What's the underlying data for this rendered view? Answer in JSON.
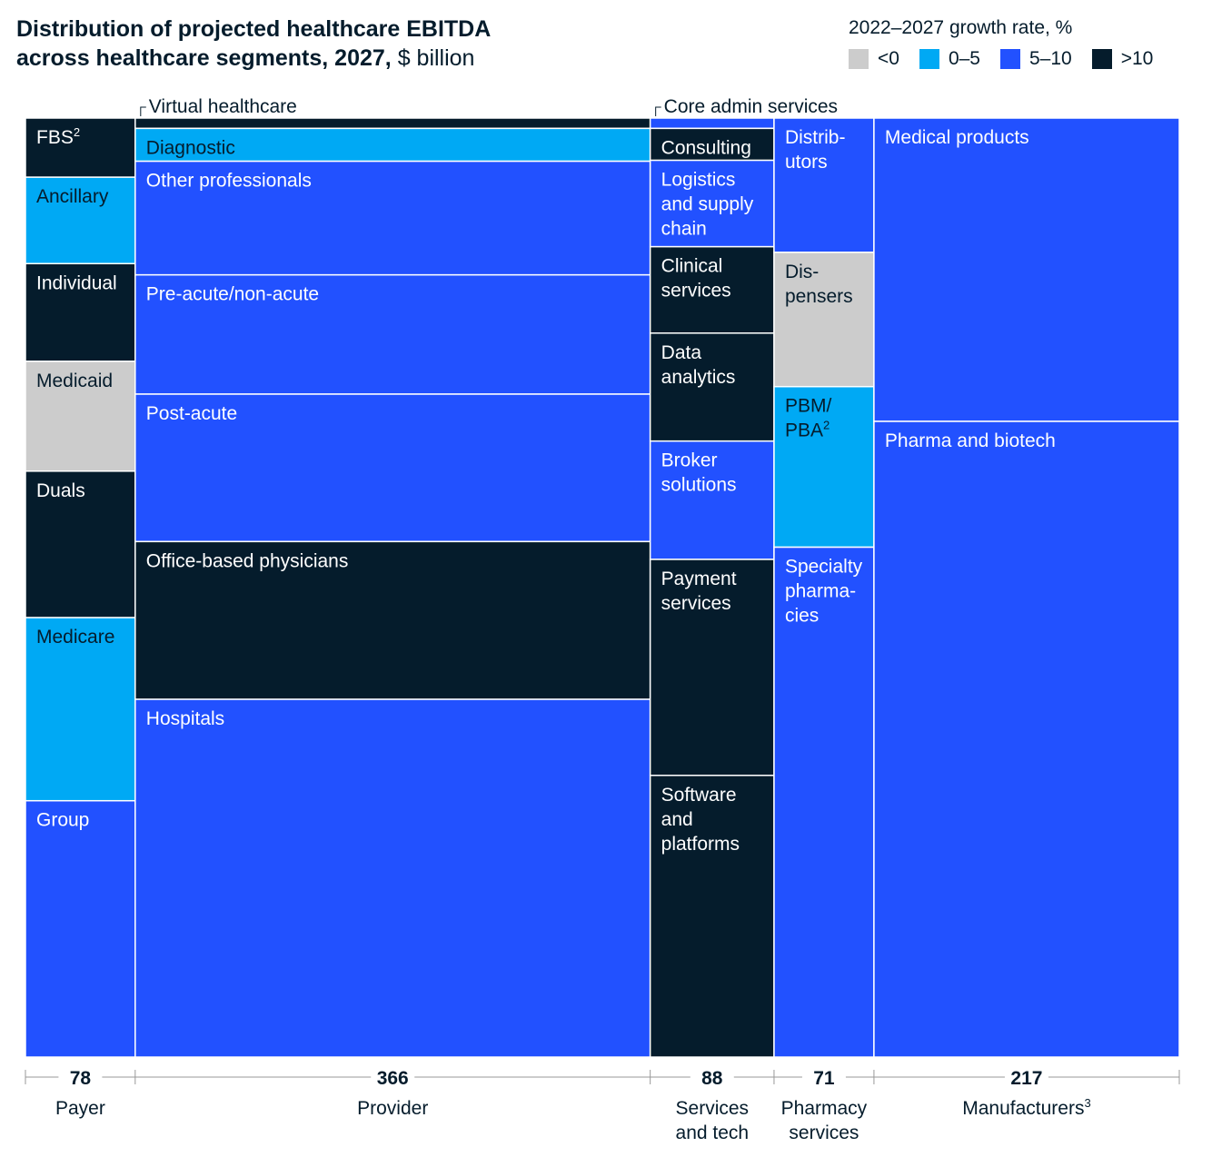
{
  "title": {
    "line1": "Distribution of projected healthcare EBITDA",
    "line2": "across healthcare segments, 2027,",
    "unit": "$ billion"
  },
  "legend": {
    "title": "2022–2027 growth rate, %",
    "items": [
      {
        "label": "<0",
        "color": "#cccccc"
      },
      {
        "label": "0–5",
        "color": "#00a9f4"
      },
      {
        "label": "5–10",
        "color": "#2251ff"
      },
      {
        "label": ">10",
        "color": "#051c2c"
      }
    ]
  },
  "chart_data": {
    "type": "marimekko",
    "value_unit": "$ billion",
    "color_key": {
      "<0": "#cccccc",
      "0–5": "#00a9f4",
      "5–10": "#2251ff",
      ">10": "#051c2c"
    },
    "columns": [
      {
        "name": "Payer",
        "value": 78,
        "total_label": "78",
        "label_lines": [
          "Payer"
        ],
        "segments": [
          {
            "name": "FBS",
            "label_lines": [
              "FBS"
            ],
            "superscript": "2",
            "share": 0.063,
            "growth": ">10"
          },
          {
            "name": "Ancillary",
            "label_lines": [
              "Ancillary"
            ],
            "share": 0.092,
            "growth": "0–5"
          },
          {
            "name": "Individual",
            "label_lines": [
              "Individual"
            ],
            "share": 0.104,
            "growth": ">10"
          },
          {
            "name": "Medicaid",
            "label_lines": [
              "Medicaid"
            ],
            "share": 0.117,
            "growth": "<0"
          },
          {
            "name": "Duals",
            "label_lines": [
              "Duals"
            ],
            "share": 0.156,
            "growth": ">10"
          },
          {
            "name": "Medicare",
            "label_lines": [
              "Medicare"
            ],
            "share": 0.195,
            "growth": "0–5"
          },
          {
            "name": "Group",
            "label_lines": [
              "Group"
            ],
            "share": 0.273,
            "growth": "5–10"
          }
        ]
      },
      {
        "name": "Provider",
        "value": 366,
        "total_label": "366",
        "label_lines": [
          "Provider"
        ],
        "top_callout": "Virtual healthcare",
        "segments": [
          {
            "name": "Virtual healthcare",
            "label_lines": [],
            "share": 0.011,
            "growth": ">10"
          },
          {
            "name": "Diagnostic",
            "label_lines": [
              "Diagnostic"
            ],
            "share": 0.035,
            "growth": "0–5"
          },
          {
            "name": "Other professionals",
            "label_lines": [
              "Other professionals"
            ],
            "share": 0.121,
            "growth": "5–10"
          },
          {
            "name": "Pre-acute/non-acute",
            "label_lines": [
              "Pre-acute/non-acute"
            ],
            "share": 0.127,
            "growth": "5–10"
          },
          {
            "name": "Post-acute",
            "label_lines": [
              "Post-acute"
            ],
            "share": 0.157,
            "growth": "5–10"
          },
          {
            "name": "Office-based physicians",
            "label_lines": [
              "Office-based physicians"
            ],
            "share": 0.168,
            "growth": ">10"
          },
          {
            "name": "Hospitals",
            "label_lines": [
              "Hospitals"
            ],
            "share": 0.381,
            "growth": "5–10"
          }
        ]
      },
      {
        "name": "Services and tech",
        "value": 88,
        "total_label": "88",
        "label_lines": [
          "Services",
          "and tech"
        ],
        "top_callout": "Core admin services",
        "segments": [
          {
            "name": "Core admin services",
            "label_lines": [],
            "share": 0.011,
            "growth": "5–10"
          },
          {
            "name": "Consulting",
            "label_lines": [
              "Consulting"
            ],
            "share": 0.034,
            "growth": ">10"
          },
          {
            "name": "Logistics and supply chain",
            "label_lines": [
              "Logistics",
              "and supply",
              "chain"
            ],
            "share": 0.092,
            "growth": "5–10"
          },
          {
            "name": "Clinical services",
            "label_lines": [
              "Clinical",
              "services"
            ],
            "share": 0.092,
            "growth": ">10"
          },
          {
            "name": "Data analytics",
            "label_lines": [
              "Data",
              "analytics"
            ],
            "share": 0.115,
            "growth": ">10"
          },
          {
            "name": "Broker solutions",
            "label_lines": [
              "Broker",
              "solutions"
            ],
            "share": 0.126,
            "growth": "5–10"
          },
          {
            "name": "Payment services",
            "label_lines": [
              "Payment",
              "services"
            ],
            "share": 0.23,
            "growth": ">10"
          },
          {
            "name": "Software and platforms",
            "label_lines": [
              "Software",
              "and",
              "platforms"
            ],
            "share": 0.3,
            "growth": ">10"
          }
        ]
      },
      {
        "name": "Pharmacy services",
        "value": 71,
        "total_label": "71",
        "label_lines": [
          "Pharmacy",
          "services"
        ],
        "segments": [
          {
            "name": "Distributors",
            "label_lines": [
              "Distrib-",
              "utors"
            ],
            "share": 0.143,
            "growth": "5–10"
          },
          {
            "name": "Dispensers",
            "label_lines": [
              "Dis-",
              "pensers"
            ],
            "share": 0.143,
            "growth": "<0"
          },
          {
            "name": "PBM/PBA",
            "label_lines": [
              "PBM/",
              "PBA"
            ],
            "superscript": "2",
            "share": 0.171,
            "growth": "0–5"
          },
          {
            "name": "Specialty pharmacies",
            "label_lines": [
              "Specialty",
              "pharma-",
              "cies"
            ],
            "share": 0.543,
            "growth": "5–10"
          }
        ]
      },
      {
        "name": "Manufacturers",
        "value": 217,
        "total_label": "217",
        "label_lines": [
          "Manufacturers"
        ],
        "label_superscript": "3",
        "segments": [
          {
            "name": "Medical products",
            "label_lines": [
              "Medical products"
            ],
            "share": 0.323,
            "growth": "5–10"
          },
          {
            "name": "Pharma and biotech",
            "label_lines": [
              "Pharma and biotech"
            ],
            "share": 0.677,
            "growth": "5–10"
          }
        ]
      }
    ]
  }
}
